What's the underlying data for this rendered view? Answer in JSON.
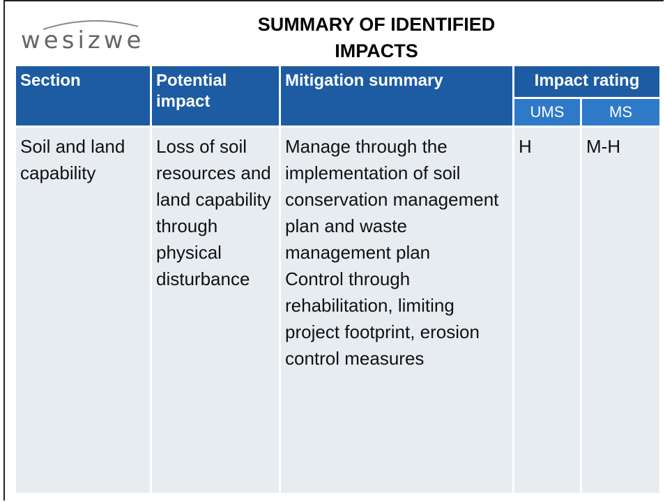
{
  "header": {
    "logo": "wesizwe",
    "title": "SUMMARY OF IDENTIFIED IMPACTS"
  },
  "table": {
    "columns": [
      "Section",
      "Potential impact",
      "Mitigation summary",
      "Impact rating"
    ],
    "subcolumns": [
      "UMS",
      "MS"
    ],
    "rows": [
      [
        [
          "Soil and land capability"
        ],
        [
          "Loss of soil resources and land capability through physical disturbance"
        ],
        [
          "Manage through the implementation of soil conservation management plan and waste management plan",
          "Control through rehabilitation, limiting project footprint, erosion control measures"
        ],
        [
          "H"
        ],
        [
          "M-H"
        ]
      ]
    ]
  }
}
